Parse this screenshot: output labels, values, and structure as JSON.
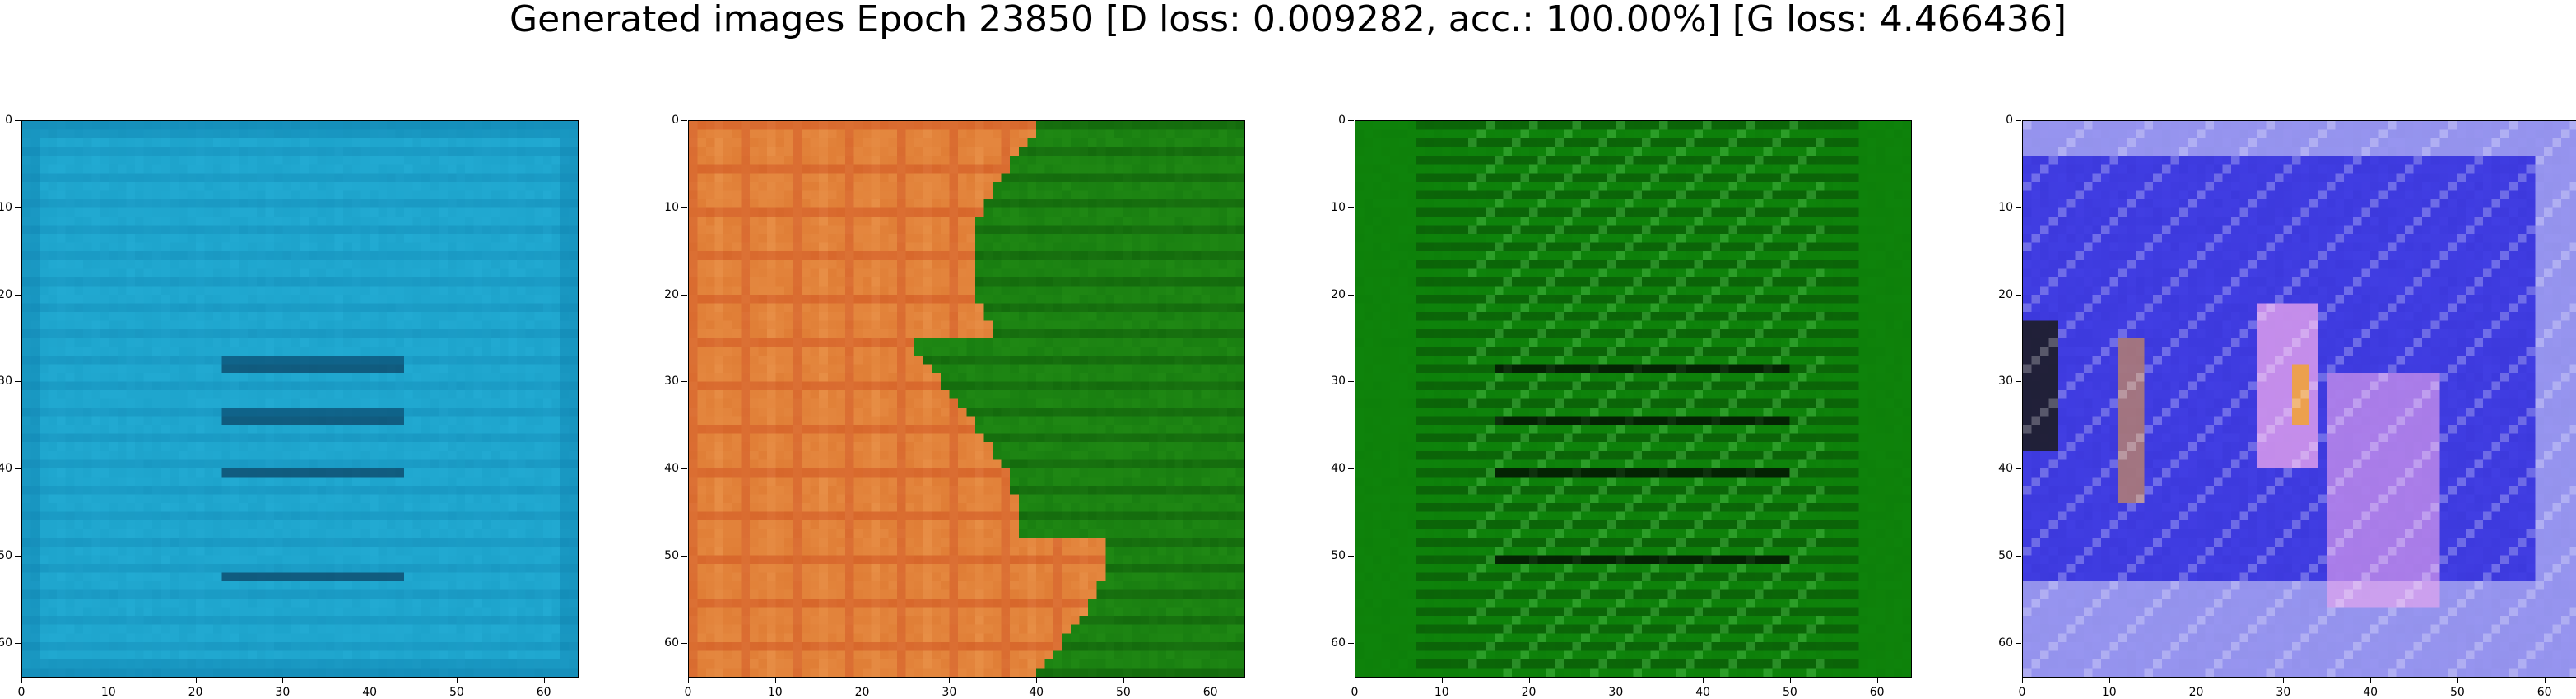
{
  "figure": {
    "title": "Generated images Epoch 23850 [D loss: 0.009282, acc.: 100.00%] [G loss: 4.466436]"
  },
  "axes": {
    "x_ticks": [
      "0",
      "10",
      "20",
      "30",
      "40",
      "50",
      "60"
    ],
    "y_ticks": [
      "0",
      "10",
      "20",
      "30",
      "40",
      "50",
      "60"
    ],
    "range": [
      0,
      64
    ]
  },
  "panels": [
    {
      "name": "generated-image-1",
      "palette": [
        "#1a9fc7",
        "#0c79a8",
        "#2fbde5",
        "#0a3c5d"
      ],
      "description_tone": "cyan-blue"
    },
    {
      "name": "generated-image-2",
      "palette": [
        "#e07e36",
        "#f6b067",
        "#c73c17",
        "#2f9f1c",
        "#0c6c0a"
      ],
      "description_tone": "orange-green"
    },
    {
      "name": "generated-image-3",
      "palette": [
        "#0c7c08",
        "#128f10",
        "#50c24c",
        "#062f03"
      ],
      "description_tone": "green"
    },
    {
      "name": "generated-image-4",
      "palette": [
        "#4542e8",
        "#2b27c6",
        "#f0a8ee",
        "#ffffff",
        "#f3a333",
        "#1b1b1b"
      ],
      "description_tone": "blue-purple"
    }
  ]
}
